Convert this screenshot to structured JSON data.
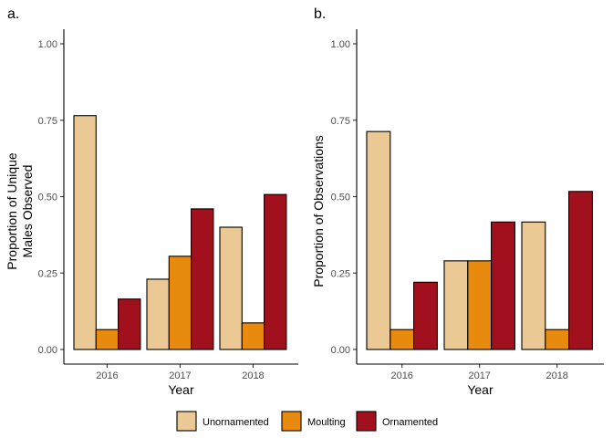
{
  "colors": {
    "Unornamented": "#EBC995",
    "Moulting": "#E78A0E",
    "Ornamented": "#A0111D"
  },
  "legend": [
    "Unornamented",
    "Moulting",
    "Ornamented"
  ],
  "chart_data": [
    {
      "type": "bar",
      "panel_label": "a.",
      "categories": [
        "2016",
        "2017",
        "2018"
      ],
      "xlabel": "Year",
      "ylabel_lines": [
        "Proportion of Unique",
        "Males Observed"
      ],
      "ylim": [
        0,
        1
      ],
      "yticks": [
        "0.00",
        "0.25",
        "0.50",
        "0.75",
        "1.00"
      ],
      "series": [
        {
          "name": "Unornamented",
          "values": [
            0.765,
            0.23,
            0.4
          ]
        },
        {
          "name": "Moulting",
          "values": [
            0.065,
            0.305,
            0.087
          ]
        },
        {
          "name": "Ornamented",
          "values": [
            0.165,
            0.46,
            0.507
          ]
        }
      ]
    },
    {
      "type": "bar",
      "panel_label": "b.",
      "categories": [
        "2016",
        "2017",
        "2018"
      ],
      "xlabel": "Year",
      "ylabel_lines": [
        "Proportion of Observations"
      ],
      "ylim": [
        0,
        1
      ],
      "yticks": [
        "0.00",
        "0.25",
        "0.50",
        "0.75",
        "1.00"
      ],
      "series": [
        {
          "name": "Unornamented",
          "values": [
            0.713,
            0.29,
            0.417
          ]
        },
        {
          "name": "Moulting",
          "values": [
            0.065,
            0.29,
            0.065
          ]
        },
        {
          "name": "Ornamented",
          "values": [
            0.22,
            0.417,
            0.517
          ]
        }
      ]
    }
  ]
}
